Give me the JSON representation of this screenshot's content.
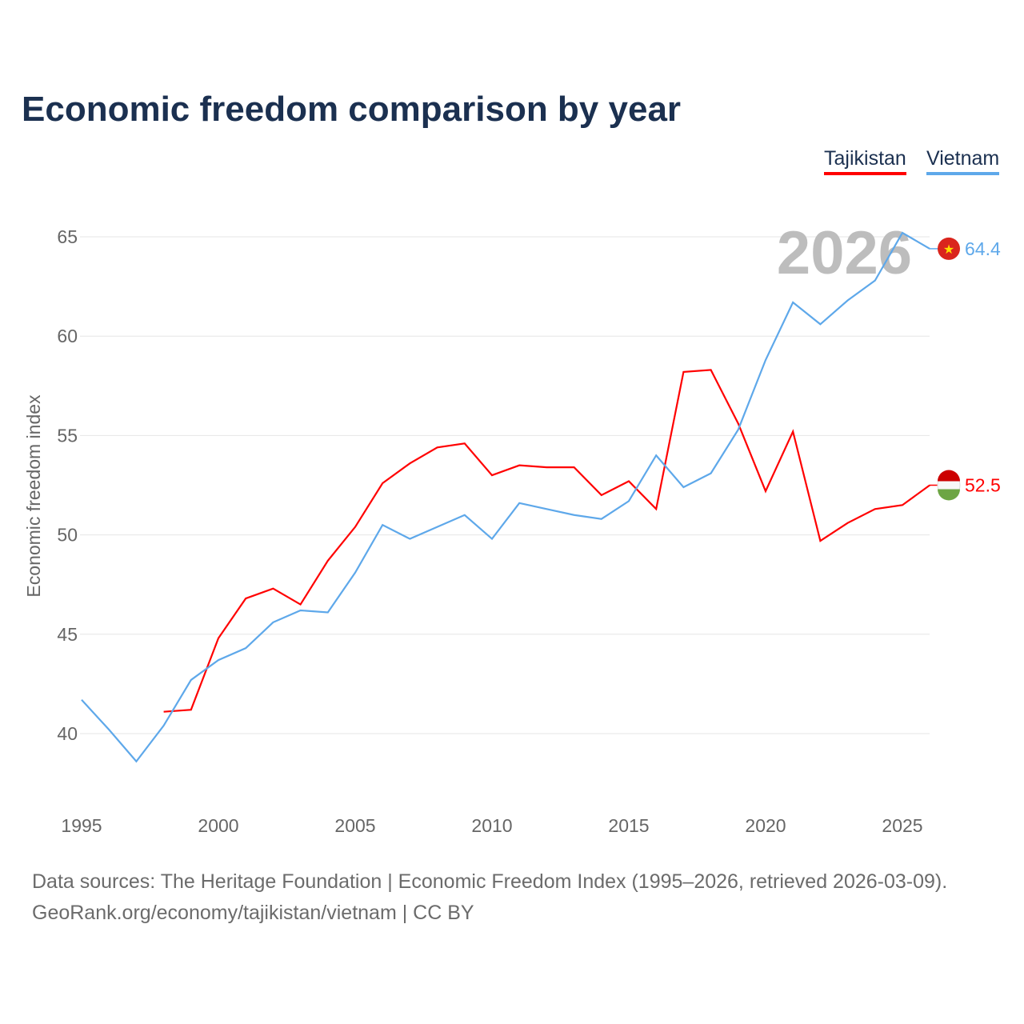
{
  "chart_data": {
    "type": "line",
    "title": "Economic freedom comparison by year",
    "xlabel": "",
    "ylabel": "Economic freedom index",
    "xlim": [
      1995,
      2026
    ],
    "ylim": [
      36,
      67
    ],
    "x_ticks": [
      1995,
      2000,
      2005,
      2010,
      2015,
      2020,
      2025
    ],
    "y_ticks": [
      40,
      45,
      50,
      55,
      60,
      65
    ],
    "grid": true,
    "legend_position": "top-right",
    "year_watermark": "2026",
    "series": [
      {
        "name": "Tajikistan",
        "color": "#ff0000",
        "end_label": "52.5",
        "x": [
          1998,
          1999,
          2000,
          2001,
          2002,
          2003,
          2004,
          2005,
          2006,
          2007,
          2008,
          2009,
          2010,
          2011,
          2012,
          2013,
          2014,
          2015,
          2016,
          2017,
          2018,
          2019,
          2020,
          2021,
          2022,
          2023,
          2024,
          2025,
          2026
        ],
        "values": [
          41.1,
          41.2,
          44.8,
          46.8,
          47.3,
          46.5,
          48.7,
          50.4,
          52.6,
          53.6,
          54.4,
          54.6,
          53.0,
          53.5,
          53.4,
          53.4,
          52.0,
          52.7,
          51.3,
          58.2,
          58.3,
          55.6,
          52.2,
          55.2,
          49.7,
          50.6,
          51.3,
          51.5,
          52.5
        ]
      },
      {
        "name": "Vietnam",
        "color": "#5ea8ea",
        "end_label": "64.4",
        "x": [
          1995,
          1996,
          1997,
          1998,
          1999,
          2000,
          2001,
          2002,
          2003,
          2004,
          2005,
          2006,
          2007,
          2008,
          2009,
          2010,
          2011,
          2012,
          2013,
          2014,
          2015,
          2016,
          2017,
          2018,
          2019,
          2020,
          2021,
          2022,
          2023,
          2024,
          2025,
          2026
        ],
        "values": [
          41.7,
          40.2,
          38.6,
          40.4,
          42.7,
          43.7,
          44.3,
          45.6,
          46.2,
          46.1,
          48.1,
          50.5,
          49.8,
          50.4,
          51.0,
          49.8,
          51.6,
          51.3,
          51.0,
          50.8,
          51.7,
          54.0,
          52.4,
          53.1,
          55.3,
          58.8,
          61.7,
          60.6,
          61.8,
          62.8,
          65.2,
          64.4
        ]
      }
    ]
  },
  "footer": {
    "line1": "Data sources: The Heritage Foundation | Economic Freedom Index (1995–2026, retrieved 2026-03-09).",
    "line2": "GeoRank.org/economy/tajikistan/vietnam | CC BY"
  }
}
